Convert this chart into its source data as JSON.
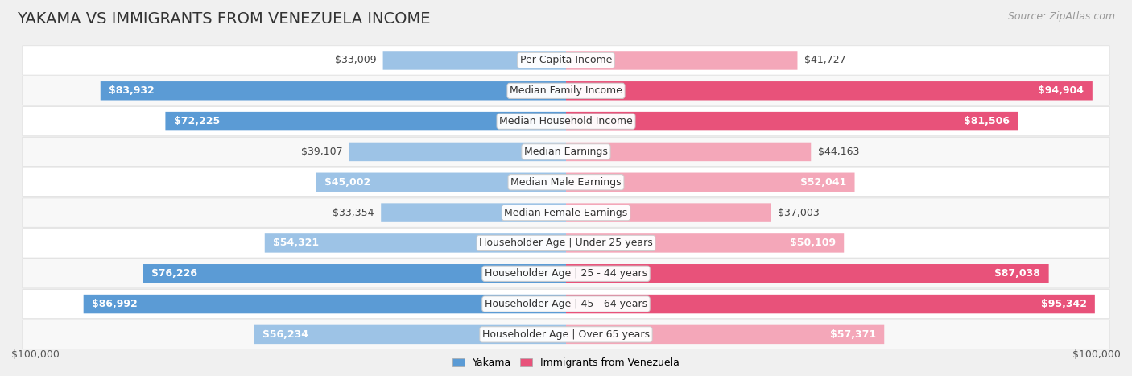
{
  "title": "YAKAMA VS IMMIGRANTS FROM VENEZUELA INCOME",
  "source": "Source: ZipAtlas.com",
  "categories": [
    "Per Capita Income",
    "Median Family Income",
    "Median Household Income",
    "Median Earnings",
    "Median Male Earnings",
    "Median Female Earnings",
    "Householder Age | Under 25 years",
    "Householder Age | 25 - 44 years",
    "Householder Age | 45 - 64 years",
    "Householder Age | Over 65 years"
  ],
  "yakama_values": [
    33009,
    83932,
    72225,
    39107,
    45002,
    33354,
    54321,
    76226,
    86992,
    56234
  ],
  "venezuela_values": [
    41727,
    94904,
    81506,
    44163,
    52041,
    37003,
    50109,
    87038,
    95342,
    57371
  ],
  "yakama_color_dark": "#5b9bd5",
  "yakama_color_light": "#9dc3e6",
  "venezuela_color_dark": "#e8527a",
  "venezuela_color_light": "#f4a7b9",
  "max_value": 100000,
  "bg_color": "#f0f0f0",
  "row_bg_even": "#f8f8f8",
  "row_bg_odd": "#ffffff",
  "legend_yakama": "Yakama",
  "legend_venezuela": "Immigrants from Venezuela",
  "bottom_label_left": "$100,000",
  "bottom_label_right": "$100,000",
  "title_fontsize": 14,
  "label_fontsize": 9,
  "category_fontsize": 9,
  "source_fontsize": 9,
  "inside_label_threshold": 45000
}
